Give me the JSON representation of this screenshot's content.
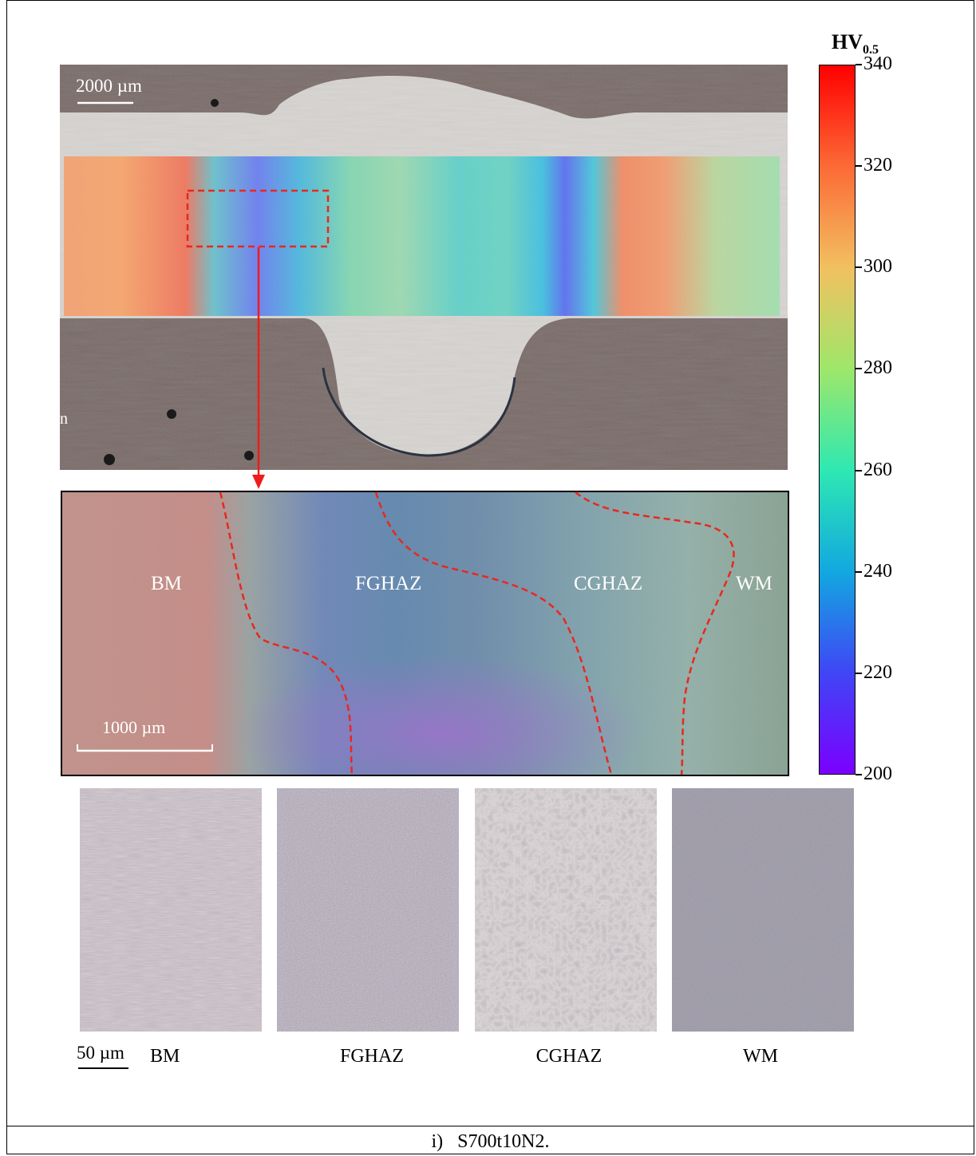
{
  "colorbar": {
    "title_main": "HV",
    "title_sub": "0.5",
    "ticks": [
      340,
      320,
      300,
      280,
      260,
      240,
      220,
      200
    ],
    "min": 200,
    "max": 340,
    "colors": [
      "#7b00ff",
      "#3f46f5",
      "#12a8e0",
      "#2ee8b2",
      "#9ee76a",
      "#f2c060",
      "#fc6a36",
      "#ff0000"
    ]
  },
  "macro": {
    "scale_bar_label": "2000 µm",
    "edge_glyph": "n"
  },
  "zoom": {
    "scale_bar_label": "1000 µm",
    "zones": [
      "BM",
      "FGHAZ",
      "CGHAZ",
      "WM"
    ]
  },
  "micrographs": {
    "scale_bar_label": "50 µm",
    "labels": [
      "BM",
      "FGHAZ",
      "CGHAZ",
      "WM"
    ]
  },
  "caption": {
    "marker": "i)",
    "text": "S700t10N2."
  },
  "colors": {
    "highlight": "#e8281e",
    "arrow": "#ee1c1c"
  }
}
